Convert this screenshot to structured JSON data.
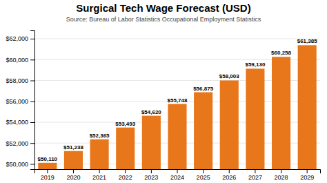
{
  "chart_data": {
    "type": "bar",
    "title": "Surgical Tech Wage Forecast (USD)",
    "subtitle": "Source: Bureau of Labor Statistics Occupational Employment Statistics",
    "categories": [
      "2019",
      "2020",
      "2021",
      "2022",
      "2023",
      "2024",
      "2025",
      "2026",
      "2027",
      "2028",
      "2029"
    ],
    "values": [
      50110,
      51238,
      52365,
      53493,
      54620,
      55748,
      56875,
      58003,
      59130,
      60258,
      61385
    ],
    "value_labels": [
      "$50,110",
      "$51,238",
      "$52,365",
      "$53,493",
      "$54,620",
      "$55,748",
      "$56,875",
      "$58,003",
      "$59,130",
      "$60,258",
      "$61,385"
    ],
    "data_labels": true,
    "color": "#E8761A",
    "ylim": [
      49500,
      62800
    ],
    "yticks": [
      {
        "value": 50000,
        "label": "$50,000"
      },
      {
        "value": 52000,
        "label": "$52,000"
      },
      {
        "value": 54000,
        "label": "$54,000"
      },
      {
        "value": 56000,
        "label": "$56,000"
      },
      {
        "value": 58000,
        "label": "$58,000"
      },
      {
        "value": 60000,
        "label": "$60,000"
      },
      {
        "value": 62000,
        "label": "$62,000"
      }
    ],
    "grid": true
  }
}
